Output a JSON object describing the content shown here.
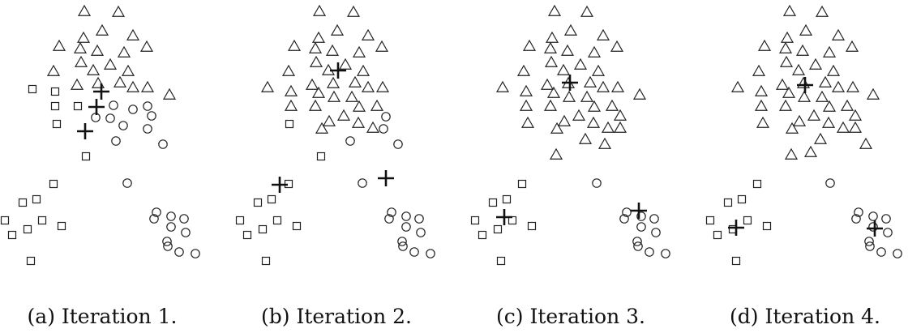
{
  "panels": [
    {
      "caption": "(a) Iteration 1.",
      "triangles": [
        [
          104,
          14
        ],
        [
          146,
          15
        ],
        [
          126,
          38
        ],
        [
          103,
          47
        ],
        [
          164,
          44
        ],
        [
          73,
          57
        ],
        [
          181,
          58
        ],
        [
          99,
          60
        ],
        [
          120,
          63
        ],
        [
          153,
          65
        ],
        [
          100,
          77
        ],
        [
          136,
          80
        ],
        [
          66,
          88
        ],
        [
          115,
          87
        ],
        [
          158,
          88
        ],
        [
          121,
          103
        ],
        [
          95,
          105
        ],
        [
          148,
          102
        ],
        [
          164,
          108
        ],
        [
          182,
          108
        ],
        [
          209,
          117
        ]
      ],
      "squares": [
        [
          40,
          110
        ],
        [
          68,
          113
        ],
        [
          68,
          131
        ],
        [
          96,
          131
        ],
        [
          70,
          153
        ],
        [
          106,
          193
        ],
        [
          66,
          227
        ],
        [
          45,
          246
        ],
        [
          28,
          250
        ],
        [
          6,
          272
        ],
        [
          52,
          272
        ],
        [
          76,
          279
        ],
        [
          34,
          283
        ],
        [
          15,
          290
        ],
        [
          38,
          322
        ]
      ],
      "circles": [
        [
          140,
          130
        ],
        [
          118,
          145
        ],
        [
          164,
          135
        ],
        [
          182,
          131
        ],
        [
          136,
          146
        ],
        [
          187,
          143
        ],
        [
          152,
          155
        ],
        [
          182,
          159
        ],
        [
          143,
          174
        ],
        [
          201,
          178
        ],
        [
          157,
          226
        ],
        [
          193,
          262
        ],
        [
          211,
          267
        ],
        [
          227,
          270
        ],
        [
          211,
          280
        ],
        [
          229,
          287
        ],
        [
          206,
          298
        ],
        [
          190,
          270
        ],
        [
          221,
          311
        ],
        [
          241,
          313
        ],
        [
          207,
          304
        ]
      ],
      "crosses": [
        [
          125,
          113
        ],
        [
          119,
          132
        ],
        [
          105,
          162
        ]
      ]
    },
    {
      "caption": "(b) Iteration 2.",
      "triangles": [
        [
          394,
          14
        ],
        [
          436,
          15
        ],
        [
          416,
          38
        ],
        [
          393,
          47
        ],
        [
          454,
          44
        ],
        [
          363,
          57
        ],
        [
          471,
          58
        ],
        [
          389,
          60
        ],
        [
          410,
          63
        ],
        [
          443,
          65
        ],
        [
          390,
          77
        ],
        [
          426,
          80
        ],
        [
          356,
          88
        ],
        [
          405,
          87
        ],
        [
          448,
          88
        ],
        [
          411,
          103
        ],
        [
          385,
          105
        ],
        [
          438,
          102
        ],
        [
          454,
          108
        ],
        [
          472,
          108
        ],
        [
          330,
          108
        ],
        [
          359,
          113
        ],
        [
          393,
          115
        ],
        [
          412,
          120
        ],
        [
          434,
          120
        ],
        [
          389,
          131
        ],
        [
          359,
          131
        ],
        [
          443,
          132
        ],
        [
          465,
          131
        ],
        [
          424,
          143
        ],
        [
          406,
          150
        ],
        [
          442,
          152
        ],
        [
          460,
          158
        ],
        [
          397,
          159
        ]
      ],
      "squares": [
        [
          357,
          153
        ],
        [
          396,
          193
        ],
        [
          356,
          227
        ],
        [
          335,
          246
        ],
        [
          318,
          250
        ],
        [
          296,
          272
        ],
        [
          342,
          272
        ],
        [
          366,
          279
        ],
        [
          324,
          283
        ],
        [
          305,
          290
        ],
        [
          328,
          322
        ]
      ],
      "circles": [
        [
          476,
          144
        ],
        [
          473,
          159
        ],
        [
          432,
          174
        ],
        [
          491,
          178
        ],
        [
          447,
          226
        ],
        [
          483,
          262
        ],
        [
          501,
          267
        ],
        [
          517,
          270
        ],
        [
          501,
          280
        ],
        [
          519,
          287
        ],
        [
          496,
          298
        ],
        [
          480,
          270
        ],
        [
          511,
          311
        ],
        [
          531,
          313
        ],
        [
          497,
          304
        ]
      ],
      "crosses": [
        [
          417,
          87
        ],
        [
          345,
          228
        ],
        [
          476,
          220
        ]
      ]
    },
    {
      "caption": "(c) Iteration 3.",
      "triangles": [
        [
          684,
          14
        ],
        [
          724,
          15
        ],
        [
          704,
          38
        ],
        [
          681,
          47
        ],
        [
          744,
          44
        ],
        [
          653,
          57
        ],
        [
          761,
          58
        ],
        [
          679,
          60
        ],
        [
          700,
          63
        ],
        [
          733,
          65
        ],
        [
          680,
          77
        ],
        [
          716,
          80
        ],
        [
          646,
          88
        ],
        [
          695,
          87
        ],
        [
          738,
          88
        ],
        [
          701,
          103
        ],
        [
          675,
          105
        ],
        [
          728,
          102
        ],
        [
          744,
          108
        ],
        [
          762,
          108
        ],
        [
          620,
          108
        ],
        [
          789,
          117
        ],
        [
          649,
          113
        ],
        [
          683,
          115
        ],
        [
          702,
          120
        ],
        [
          724,
          120
        ],
        [
          679,
          131
        ],
        [
          649,
          131
        ],
        [
          733,
          132
        ],
        [
          755,
          131
        ],
        [
          714,
          143
        ],
        [
          696,
          150
        ],
        [
          732,
          152
        ],
        [
          750,
          158
        ],
        [
          765,
          143
        ],
        [
          765,
          158
        ],
        [
          651,
          152
        ],
        [
          687,
          159
        ],
        [
          722,
          172
        ],
        [
          746,
          178
        ],
        [
          686,
          191
        ]
      ],
      "squares": [
        [
          644,
          227
        ],
        [
          625,
          246
        ],
        [
          608,
          250
        ],
        [
          586,
          272
        ],
        [
          632,
          272
        ],
        [
          656,
          279
        ],
        [
          614,
          283
        ],
        [
          595,
          290
        ],
        [
          618,
          322
        ]
      ],
      "circles": [
        [
          736,
          226
        ],
        [
          773,
          262
        ],
        [
          791,
          267
        ],
        [
          807,
          270
        ],
        [
          791,
          280
        ],
        [
          809,
          287
        ],
        [
          786,
          298
        ],
        [
          770,
          270
        ],
        [
          801,
          311
        ],
        [
          821,
          313
        ],
        [
          787,
          304
        ]
      ],
      "crosses": [
        [
          703,
          102
        ],
        [
          622,
          268
        ],
        [
          788,
          260
        ]
      ]
    },
    {
      "caption": "(d) Iteration 4.",
      "triangles": [
        [
          974,
          14
        ],
        [
          1014,
          15
        ],
        [
          994,
          38
        ],
        [
          971,
          47
        ],
        [
          1034,
          44
        ],
        [
          943,
          57
        ],
        [
          1051,
          58
        ],
        [
          969,
          60
        ],
        [
          990,
          63
        ],
        [
          1023,
          65
        ],
        [
          970,
          77
        ],
        [
          1006,
          80
        ],
        [
          936,
          88
        ],
        [
          985,
          87
        ],
        [
          1028,
          88
        ],
        [
          991,
          103
        ],
        [
          965,
          105
        ],
        [
          1018,
          102
        ],
        [
          1034,
          108
        ],
        [
          1052,
          108
        ],
        [
          910,
          108
        ],
        [
          1077,
          117
        ],
        [
          939,
          113
        ],
        [
          973,
          115
        ],
        [
          992,
          120
        ],
        [
          1014,
          120
        ],
        [
          969,
          131
        ],
        [
          939,
          131
        ],
        [
          1023,
          132
        ],
        [
          1045,
          131
        ],
        [
          1004,
          143
        ],
        [
          986,
          150
        ],
        [
          1022,
          152
        ],
        [
          1040,
          158
        ],
        [
          1055,
          143
        ],
        [
          1055,
          158
        ],
        [
          941,
          152
        ],
        [
          977,
          159
        ],
        [
          1012,
          172
        ],
        [
          1068,
          178
        ],
        [
          976,
          191
        ],
        [
          1000,
          188
        ]
      ],
      "squares": [
        [
          934,
          227
        ],
        [
          915,
          246
        ],
        [
          898,
          250
        ],
        [
          876,
          272
        ],
        [
          922,
          272
        ],
        [
          946,
          279
        ],
        [
          904,
          283
        ],
        [
          885,
          290
        ],
        [
          908,
          322
        ]
      ],
      "circles": [
        [
          1024,
          226
        ],
        [
          1059,
          262
        ],
        [
          1077,
          267
        ],
        [
          1093,
          270
        ],
        [
          1077,
          280
        ],
        [
          1095,
          287
        ],
        [
          1072,
          298
        ],
        [
          1056,
          270
        ],
        [
          1087,
          311
        ],
        [
          1107,
          313
        ],
        [
          1073,
          304
        ]
      ],
      "crosses": [
        [
          993,
          105
        ],
        [
          908,
          281
        ],
        [
          1079,
          282
        ]
      ]
    }
  ]
}
